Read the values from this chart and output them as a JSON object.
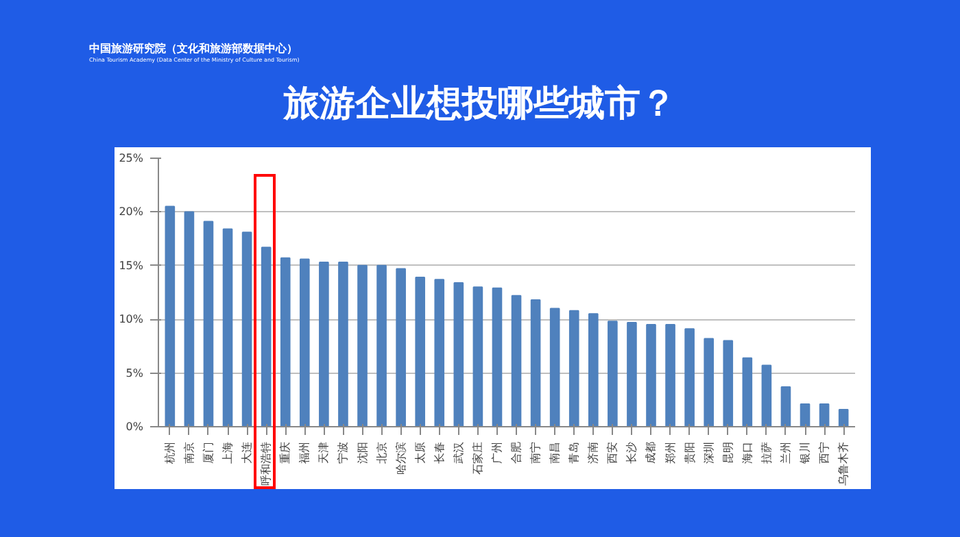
{
  "chart_data": {
    "type": "bar",
    "title": "旅游企业想投哪些城市？",
    "annotations": [
      "中国旅游研究院（文化和旅游部数据中心）",
      "China Tourism Academy (Data Center of the Ministry of Culture and Tourism)"
    ],
    "categories": [
      "杭州",
      "南京",
      "厦门",
      "上海",
      "大连",
      "呼和浩特",
      "重庆",
      "福州",
      "天津",
      "宁波",
      "沈阳",
      "北京",
      "哈尔滨",
      "太原",
      "长春",
      "武汉",
      "石家庄",
      "广州",
      "合肥",
      "南宁",
      "南昌",
      "青岛",
      "济南",
      "西安",
      "长沙",
      "成都",
      "郑州",
      "贵阳",
      "深圳",
      "昆明",
      "海口",
      "拉萨",
      "兰州",
      "银川",
      "西宁",
      "乌鲁木齐"
    ],
    "values": [
      20.5,
      20.0,
      19.1,
      18.4,
      18.1,
      16.7,
      15.7,
      15.6,
      15.3,
      15.3,
      15.0,
      15.0,
      14.7,
      13.9,
      13.7,
      13.4,
      13.0,
      12.9,
      12.2,
      11.8,
      11.0,
      10.8,
      10.5,
      9.8,
      9.7,
      9.5,
      9.5,
      9.1,
      8.2,
      8.0,
      6.4,
      5.7,
      3.7,
      2.1,
      2.1,
      1.6
    ],
    "color": "#4f81bd",
    "ylim": [
      0,
      25
    ],
    "yticks": [
      {
        "value": 0,
        "label": "0%"
      },
      {
        "value": 5,
        "label": "5%"
      },
      {
        "value": 10,
        "label": "10%"
      },
      {
        "value": 15,
        "label": "15%"
      },
      {
        "value": 20,
        "label": "20%"
      },
      {
        "value": 25,
        "label": "25%"
      }
    ],
    "grid": "y"
  }
}
